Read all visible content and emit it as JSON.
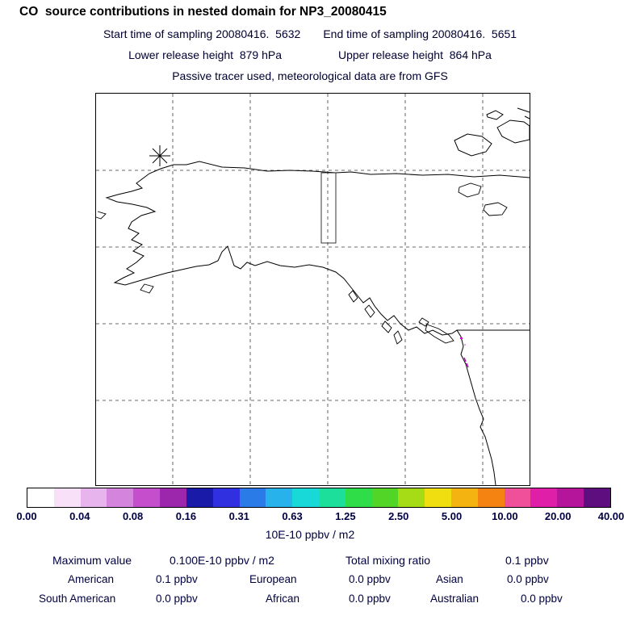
{
  "title": "CO  source contributions in nested domain for NP3_20080415",
  "header": {
    "start": "Start time of sampling 20080416.  5632",
    "end": "End time of sampling 20080416.  5651",
    "lower": "Lower release height  879 hPa",
    "upper": "Upper release height  864 hPa",
    "tracer": "Passive tracer used, meteorological data are from GFS"
  },
  "colorbar": {
    "units_label": "10E-10 ppbv / m2",
    "ticks": [
      "0.00",
      "0.04",
      "0.08",
      "0.16",
      "0.31",
      "0.63",
      "1.25",
      "2.50",
      "5.00",
      "10.00",
      "20.00",
      "40.00"
    ],
    "colors": [
      "#ffffff",
      "#f8e0f8",
      "#e8b4ee",
      "#d584de",
      "#c44ecc",
      "#9c27ad",
      "#1a1aa8",
      "#3030e0",
      "#2a7ae8",
      "#28b2ec",
      "#18d8d8",
      "#1bdf9b",
      "#2fdd48",
      "#52d526",
      "#a5dc16",
      "#f0de10",
      "#f5b312",
      "#f58312",
      "#f0509a",
      "#e01fa8",
      "#b5159a",
      "#5e0e7e"
    ]
  },
  "stats": {
    "max_label": "Maximum value",
    "max_value": "0.100E-10 ppbv / m2",
    "total_label": "Total mixing ratio",
    "total_value": "0.1 ppbv",
    "regions": [
      {
        "label": "American",
        "value": "0.1 ppbv"
      },
      {
        "label": "European",
        "value": "0.0 ppbv"
      },
      {
        "label": "Asian",
        "value": "0.0 ppbv"
      },
      {
        "label": "South American",
        "value": "0.0 ppbv"
      },
      {
        "label": "African",
        "value": "0.0 ppbv"
      },
      {
        "label": "Australian",
        "value": "0.0 ppbv"
      }
    ]
  },
  "chart_data": {
    "type": "heatmap",
    "title": "CO source contributions in nested domain for NP3_20080415",
    "region_shown": "Alaska / western North America",
    "colorbar_levels": [
      0.0,
      0.04,
      0.08,
      0.16,
      0.31,
      0.63,
      1.25,
      2.5,
      5.0,
      10.0,
      20.0,
      40.0
    ],
    "units": "10E-10 ppbv / m2",
    "maximum_value": "0.100E-10 ppbv / m2",
    "total_mixing_ratio_ppbv": 0.1,
    "region_contributions_ppbv": {
      "American": 0.1,
      "European": 0.0,
      "Asian": 0.0,
      "South American": 0.0,
      "African": 0.0,
      "Australian": 0.0
    },
    "sampling": {
      "start": "20080416. 5632",
      "end": "20080416. 5651",
      "lower_release_hPa": 879,
      "upper_release_hPa": 864,
      "meteorology": "GFS",
      "tracer": "Passive tracer"
    }
  }
}
